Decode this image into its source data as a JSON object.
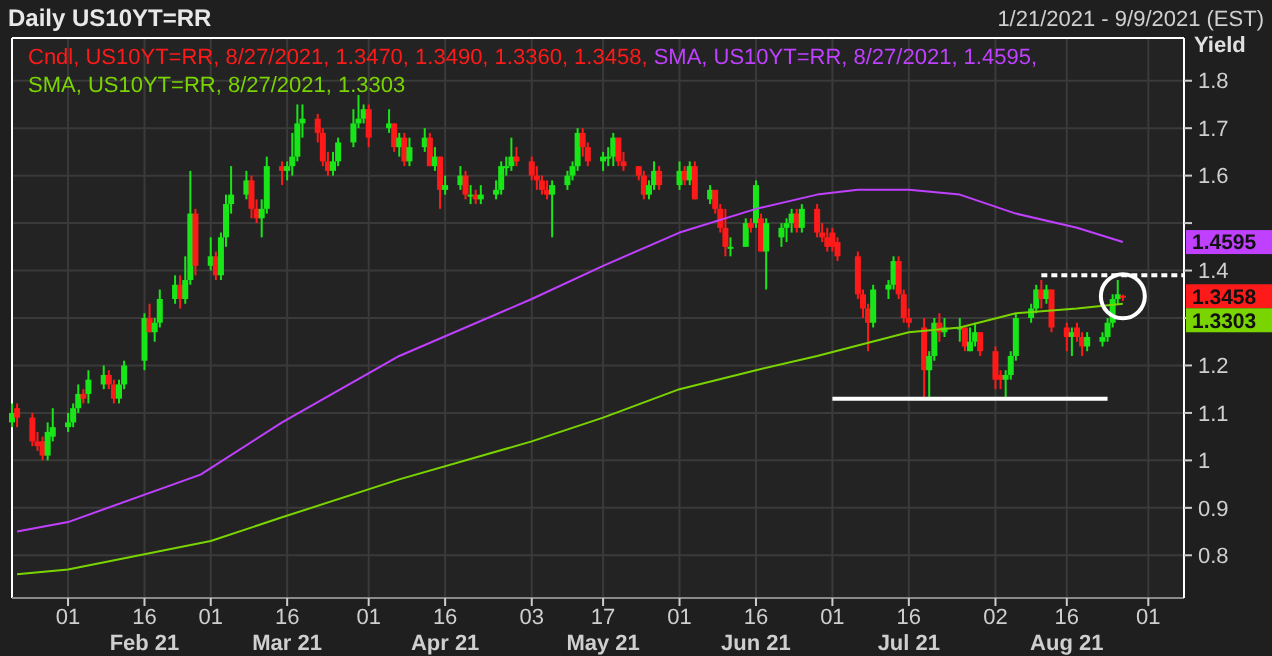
{
  "chart_data": {
    "type": "candlestick",
    "title": "Daily US10YT=RR",
    "subtitle": "1/21/2021 - 9/9/2021 (EST)",
    "ylabel": "Yield",
    "xlim": [
      "2021-01-21",
      "2021-09-08"
    ],
    "ylim": [
      0.71,
      1.89
    ],
    "xticks": [
      {
        "value": "2021-02-01",
        "label": "01"
      },
      {
        "value": "2021-02-16",
        "label": "16\nFeb 21"
      },
      {
        "value": "2021-03-01",
        "label": "01"
      },
      {
        "value": "2021-03-16",
        "label": "16\nMar 21"
      },
      {
        "value": "2021-04-01",
        "label": "01"
      },
      {
        "value": "2021-04-16",
        "label": "16\nApr 21"
      },
      {
        "value": "2021-05-03",
        "label": "03"
      },
      {
        "value": "2021-05-17",
        "label": "17\nMay 21"
      },
      {
        "value": "2021-06-01",
        "label": "01"
      },
      {
        "value": "2021-06-16",
        "label": "16\nJun 21"
      },
      {
        "value": "2021-07-01",
        "label": "01"
      },
      {
        "value": "2021-07-16",
        "label": "16\nJul 21"
      },
      {
        "value": "2021-08-02",
        "label": "02"
      },
      {
        "value": "2021-08-16",
        "label": "16\nAug 21"
      },
      {
        "value": "2021-09-01",
        "label": "01"
      }
    ],
    "yticks": [
      0.8,
      0.9,
      1,
      1.1,
      1.2,
      {
        "value": 1.3,
        "label": null
      },
      1.4,
      {
        "value": 1.5,
        "label": null
      },
      1.6,
      1.7,
      1.8
    ],
    "grid": true,
    "legend": "top left",
    "marker": "none",
    "x": [
      "2021-01-21",
      "2021-01-22",
      "2021-01-25",
      "2021-01-26",
      "2021-01-27",
      "2021-01-28",
      "2021-01-29",
      "2021-02-01",
      "2021-02-02",
      "2021-02-03",
      "2021-02-04",
      "2021-02-05",
      "2021-02-08",
      "2021-02-09",
      "2021-02-10",
      "2021-02-11",
      "2021-02-12",
      "2021-02-16",
      "2021-02-17",
      "2021-02-18",
      "2021-02-19",
      "2021-02-22",
      "2021-02-23",
      "2021-02-24",
      "2021-02-25",
      "2021-02-26",
      "2021-03-01",
      "2021-03-02",
      "2021-03-03",
      "2021-03-04",
      "2021-03-05",
      "2021-03-08",
      "2021-03-09",
      "2021-03-10",
      "2021-03-11",
      "2021-03-12",
      "2021-03-15",
      "2021-03-16",
      "2021-03-17",
      "2021-03-18",
      "2021-03-19",
      "2021-03-22",
      "2021-03-23",
      "2021-03-24",
      "2021-03-25",
      "2021-03-26",
      "2021-03-29",
      "2021-03-30",
      "2021-03-31",
      "2021-04-01",
      "2021-04-05",
      "2021-04-06",
      "2021-04-07",
      "2021-04-08",
      "2021-04-09",
      "2021-04-12",
      "2021-04-13",
      "2021-04-14",
      "2021-04-15",
      "2021-04-16",
      "2021-04-19",
      "2021-04-20",
      "2021-04-21",
      "2021-04-22",
      "2021-04-23",
      "2021-04-26",
      "2021-04-27",
      "2021-04-28",
      "2021-04-29",
      "2021-04-30",
      "2021-05-03",
      "2021-05-04",
      "2021-05-05",
      "2021-05-06",
      "2021-05-07",
      "2021-05-10",
      "2021-05-11",
      "2021-05-12",
      "2021-05-13",
      "2021-05-14",
      "2021-05-17",
      "2021-05-18",
      "2021-05-19",
      "2021-05-20",
      "2021-05-21",
      "2021-05-24",
      "2021-05-25",
      "2021-05-26",
      "2021-05-27",
      "2021-05-28",
      "2021-06-01",
      "2021-06-02",
      "2021-06-03",
      "2021-06-04",
      "2021-06-07",
      "2021-06-08",
      "2021-06-09",
      "2021-06-10",
      "2021-06-11",
      "2021-06-14",
      "2021-06-15",
      "2021-06-16",
      "2021-06-17",
      "2021-06-18",
      "2021-06-21",
      "2021-06-22",
      "2021-06-23",
      "2021-06-24",
      "2021-06-25",
      "2021-06-28",
      "2021-06-29",
      "2021-06-30",
      "2021-07-01",
      "2021-07-02",
      "2021-07-06",
      "2021-07-07",
      "2021-07-08",
      "2021-07-09",
      "2021-07-12",
      "2021-07-13",
      "2021-07-14",
      "2021-07-15",
      "2021-07-16",
      "2021-07-19",
      "2021-07-20",
      "2021-07-21",
      "2021-07-22",
      "2021-07-23",
      "2021-07-26",
      "2021-07-27",
      "2021-07-28",
      "2021-07-29",
      "2021-07-30",
      "2021-08-02",
      "2021-08-03",
      "2021-08-04",
      "2021-08-05",
      "2021-08-06",
      "2021-08-09",
      "2021-08-10",
      "2021-08-11",
      "2021-08-12",
      "2021-08-13",
      "2021-08-16",
      "2021-08-17",
      "2021-08-18",
      "2021-08-19",
      "2021-08-20",
      "2021-08-23",
      "2021-08-24",
      "2021-08-25",
      "2021-08-26",
      "2021-08-27"
    ],
    "series": [
      {
        "name": "Cndl, US10YT=RR, 8/27/2021, 1.3470, 1.3490, 1.3360, 1.3458,",
        "color": "#ff1a1a",
        "colors": [
          "#19e619",
          "#ff1a1a",
          "#ff1a1a",
          "#ff1a1a",
          "#ff1a1a",
          "#19e619",
          "#19e619",
          "#19e619",
          "#19e619",
          "#19e619",
          "#ff1a1a",
          "#19e619",
          "#19e619",
          "#ff1a1a",
          "#ff1a1a",
          "#19e619",
          "#19e619",
          "#19e619",
          "#ff1a1a",
          "#19e619",
          "#19e619",
          "#19e619",
          "#ff1a1a",
          "#19e619",
          "#19e619",
          "#ff1a1a",
          "#19e619",
          "#ff1a1a",
          "#19e619",
          "#19e619",
          "#19e619",
          "#19e619",
          "#ff1a1a",
          "#ff1a1a",
          "#19e619",
          "#19e619",
          "#ff1a1a",
          "#19e619",
          "#19e619",
          "#19e619",
          "#19e619",
          "#ff1a1a",
          "#ff1a1a",
          "#ff1a1a",
          "#19e619",
          "#19e619",
          "#19e619",
          "#19e619",
          "#19e619",
          "#ff1a1a",
          "#19e619",
          "#ff1a1a",
          "#19e619",
          "#ff1a1a",
          "#19e619",
          "#19e619",
          "#ff1a1a",
          "#19e619",
          "#ff1a1a",
          "#19e619",
          "#19e619",
          "#ff1a1a",
          "#19e619",
          "#ff1a1a",
          "#19e619",
          "#19e619",
          "#19e619",
          "#19e619",
          "#19e619",
          "#ff1a1a",
          "#ff1a1a",
          "#ff1a1a",
          "#ff1a1a",
          "#ff1a1a",
          "#19e619",
          "#19e619",
          "#19e619",
          "#19e619",
          "#ff1a1a",
          "#ff1a1a",
          "#19e619",
          "#19e619",
          "#19e619",
          "#ff1a1a",
          "#ff1a1a",
          "#ff1a1a",
          "#ff1a1a",
          "#19e619",
          "#19e619",
          "#ff1a1a",
          "#19e619",
          "#ff1a1a",
          "#19e619",
          "#ff1a1a",
          "#19e619",
          "#ff1a1a",
          "#ff1a1a",
          "#ff1a1a",
          "#19e619",
          "#19e619",
          "#ff1a1a",
          "#19e619",
          "#ff1a1a",
          "#19e619",
          "#19e619",
          "#19e619",
          "#19e619",
          "#ff1a1a",
          "#19e619",
          "#ff1a1a",
          "#ff1a1a",
          "#ff1a1a",
          "#ff1a1a",
          "#ff1a1a",
          "#ff1a1a",
          "#ff1a1a",
          "#ff1a1a",
          "#19e619",
          "#19e619",
          "#19e619",
          "#ff1a1a",
          "#ff1a1a",
          "#ff1a1a",
          "#ff1a1a",
          "#19e619",
          "#19e619",
          "#ff1a1a",
          "#19e619",
          "#19e619",
          "#ff1a1a",
          "#19e619",
          "#19e619",
          "#ff1a1a",
          "#ff1a1a",
          "#ff1a1a",
          "#19e619",
          "#19e619",
          "#19e619",
          "#19e619",
          "#19e619",
          "#ff1a1a",
          "#19e619",
          "#ff1a1a",
          "#ff1a1a",
          "#19e619",
          "#ff1a1a",
          "#ff1a1a",
          "#19e619",
          "#19e619",
          "#19e619",
          "#19e619",
          "#19e619",
          "#ff1a1a"
        ],
        "ohlc": [
          [
            1.08,
            1.12,
            1.07,
            1.1
          ],
          [
            1.11,
            1.12,
            1.07,
            1.09
          ],
          [
            1.09,
            1.1,
            1.03,
            1.04
          ],
          [
            1.04,
            1.06,
            1.02,
            1.03
          ],
          [
            1.04,
            1.05,
            1.0,
            1.01
          ],
          [
            1.01,
            1.08,
            1.0,
            1.06
          ],
          [
            1.05,
            1.11,
            1.04,
            1.07
          ],
          [
            1.07,
            1.1,
            1.06,
            1.08
          ],
          [
            1.08,
            1.12,
            1.07,
            1.11
          ],
          [
            1.11,
            1.16,
            1.1,
            1.14
          ],
          [
            1.14,
            1.15,
            1.12,
            1.13
          ],
          [
            1.14,
            1.19,
            1.12,
            1.17
          ],
          [
            1.16,
            1.2,
            1.15,
            1.18
          ],
          [
            1.18,
            1.19,
            1.15,
            1.16
          ],
          [
            1.16,
            1.17,
            1.12,
            1.13
          ],
          [
            1.13,
            1.17,
            1.12,
            1.16
          ],
          [
            1.16,
            1.21,
            1.15,
            1.2
          ],
          [
            1.21,
            1.31,
            1.19,
            1.3
          ],
          [
            1.3,
            1.33,
            1.27,
            1.27
          ],
          [
            1.27,
            1.3,
            1.25,
            1.29
          ],
          [
            1.29,
            1.36,
            1.28,
            1.34
          ],
          [
            1.34,
            1.39,
            1.33,
            1.37
          ],
          [
            1.37,
            1.39,
            1.32,
            1.34
          ],
          [
            1.34,
            1.43,
            1.33,
            1.38
          ],
          [
            1.38,
            1.61,
            1.37,
            1.52
          ],
          [
            1.52,
            1.53,
            1.39,
            1.41
          ],
          [
            1.41,
            1.47,
            1.4,
            1.43
          ],
          [
            1.43,
            1.44,
            1.38,
            1.39
          ],
          [
            1.39,
            1.48,
            1.38,
            1.47
          ],
          [
            1.47,
            1.56,
            1.45,
            1.54
          ],
          [
            1.54,
            1.62,
            1.52,
            1.56
          ],
          [
            1.56,
            1.61,
            1.55,
            1.59
          ],
          [
            1.59,
            1.6,
            1.51,
            1.53
          ],
          [
            1.53,
            1.55,
            1.5,
            1.51
          ],
          [
            1.51,
            1.55,
            1.47,
            1.53
          ],
          [
            1.53,
            1.64,
            1.52,
            1.62
          ],
          [
            1.62,
            1.63,
            1.58,
            1.61
          ],
          [
            1.61,
            1.63,
            1.59,
            1.62
          ],
          [
            1.62,
            1.69,
            1.6,
            1.64
          ],
          [
            1.64,
            1.75,
            1.63,
            1.71
          ],
          [
            1.71,
            1.75,
            1.68,
            1.72
          ],
          [
            1.72,
            1.73,
            1.67,
            1.69
          ],
          [
            1.69,
            1.7,
            1.62,
            1.63
          ],
          [
            1.63,
            1.65,
            1.6,
            1.61
          ],
          [
            1.61,
            1.65,
            1.6,
            1.63
          ],
          [
            1.63,
            1.68,
            1.62,
            1.67
          ],
          [
            1.67,
            1.74,
            1.66,
            1.71
          ],
          [
            1.71,
            1.77,
            1.7,
            1.72
          ],
          [
            1.72,
            1.75,
            1.71,
            1.74
          ],
          [
            1.74,
            1.75,
            1.66,
            1.68
          ],
          [
            1.7,
            1.74,
            1.69,
            1.71
          ],
          [
            1.71,
            1.71,
            1.65,
            1.66
          ],
          [
            1.66,
            1.69,
            1.64,
            1.68
          ],
          [
            1.68,
            1.69,
            1.62,
            1.63
          ],
          [
            1.63,
            1.68,
            1.62,
            1.66
          ],
          [
            1.66,
            1.7,
            1.65,
            1.68
          ],
          [
            1.68,
            1.69,
            1.62,
            1.62
          ],
          [
            1.62,
            1.66,
            1.61,
            1.64
          ],
          [
            1.64,
            1.64,
            1.53,
            1.57
          ],
          [
            1.57,
            1.6,
            1.56,
            1.58
          ],
          [
            1.58,
            1.62,
            1.57,
            1.6
          ],
          [
            1.6,
            1.61,
            1.55,
            1.56
          ],
          [
            1.56,
            1.58,
            1.54,
            1.56
          ],
          [
            1.56,
            1.57,
            1.54,
            1.55
          ],
          [
            1.55,
            1.58,
            1.54,
            1.56
          ],
          [
            1.56,
            1.59,
            1.55,
            1.57
          ],
          [
            1.57,
            1.63,
            1.56,
            1.62
          ],
          [
            1.62,
            1.64,
            1.6,
            1.62
          ],
          [
            1.62,
            1.68,
            1.61,
            1.64
          ],
          [
            1.64,
            1.66,
            1.62,
            1.63
          ],
          [
            1.63,
            1.64,
            1.59,
            1.6
          ],
          [
            1.6,
            1.62,
            1.57,
            1.59
          ],
          [
            1.59,
            1.6,
            1.56,
            1.57
          ],
          [
            1.57,
            1.59,
            1.55,
            1.56
          ],
          [
            1.56,
            1.59,
            1.47,
            1.58
          ],
          [
            1.58,
            1.61,
            1.57,
            1.6
          ],
          [
            1.6,
            1.63,
            1.59,
            1.62
          ],
          [
            1.62,
            1.7,
            1.61,
            1.69
          ],
          [
            1.69,
            1.7,
            1.64,
            1.66
          ],
          [
            1.66,
            1.67,
            1.62,
            1.63
          ],
          [
            1.63,
            1.65,
            1.61,
            1.64
          ],
          [
            1.64,
            1.66,
            1.62,
            1.64
          ],
          [
            1.64,
            1.69,
            1.62,
            1.68
          ],
          [
            1.68,
            1.68,
            1.62,
            1.63
          ],
          [
            1.63,
            1.65,
            1.61,
            1.62
          ],
          [
            1.62,
            1.62,
            1.59,
            1.6
          ],
          [
            1.6,
            1.61,
            1.55,
            1.56
          ],
          [
            1.56,
            1.59,
            1.55,
            1.58
          ],
          [
            1.58,
            1.63,
            1.57,
            1.61
          ],
          [
            1.61,
            1.62,
            1.57,
            1.58
          ],
          [
            1.58,
            1.63,
            1.57,
            1.61
          ],
          [
            1.61,
            1.62,
            1.58,
            1.59
          ],
          [
            1.59,
            1.63,
            1.58,
            1.62
          ],
          [
            1.62,
            1.63,
            1.55,
            1.55
          ],
          [
            1.55,
            1.58,
            1.54,
            1.57
          ],
          [
            1.57,
            1.57,
            1.52,
            1.53
          ],
          [
            1.53,
            1.54,
            1.48,
            1.49
          ],
          [
            1.49,
            1.53,
            1.43,
            1.45
          ],
          [
            1.45,
            1.47,
            1.43,
            1.45
          ],
          [
            1.45,
            1.51,
            1.45,
            1.5
          ],
          [
            1.5,
            1.51,
            1.48,
            1.49
          ],
          [
            1.5,
            1.59,
            1.49,
            1.58
          ],
          [
            1.51,
            1.52,
            1.44,
            1.44
          ],
          [
            1.44,
            1.51,
            1.36,
            1.5
          ],
          [
            1.47,
            1.5,
            1.45,
            1.49
          ],
          [
            1.49,
            1.51,
            1.46,
            1.5
          ],
          [
            1.5,
            1.53,
            1.48,
            1.52
          ],
          [
            1.52,
            1.53,
            1.48,
            1.49
          ],
          [
            1.49,
            1.54,
            1.48,
            1.53
          ],
          [
            1.53,
            1.54,
            1.47,
            1.48
          ],
          [
            1.48,
            1.5,
            1.46,
            1.47
          ],
          [
            1.47,
            1.49,
            1.44,
            1.45
          ],
          [
            1.48,
            1.49,
            1.44,
            1.45
          ],
          [
            1.46,
            1.47,
            1.42,
            1.43
          ],
          [
            1.43,
            1.44,
            1.34,
            1.35
          ],
          [
            1.35,
            1.36,
            1.3,
            1.32
          ],
          [
            1.32,
            1.33,
            1.23,
            1.29
          ],
          [
            1.29,
            1.37,
            1.28,
            1.36
          ],
          [
            1.36,
            1.38,
            1.34,
            1.37
          ],
          [
            1.37,
            1.43,
            1.36,
            1.42
          ],
          [
            1.42,
            1.43,
            1.34,
            1.35
          ],
          [
            1.35,
            1.36,
            1.29,
            1.3
          ],
          [
            1.3,
            1.32,
            1.28,
            1.29
          ],
          [
            1.28,
            1.3,
            1.13,
            1.19
          ],
          [
            1.19,
            1.23,
            1.13,
            1.22
          ],
          [
            1.22,
            1.3,
            1.21,
            1.29
          ],
          [
            1.29,
            1.31,
            1.25,
            1.27
          ],
          [
            1.27,
            1.3,
            1.26,
            1.28
          ],
          [
            1.28,
            1.3,
            1.25,
            1.28
          ],
          [
            1.28,
            1.28,
            1.23,
            1.24
          ],
          [
            1.23,
            1.28,
            1.23,
            1.25
          ],
          [
            1.25,
            1.29,
            1.24,
            1.27
          ],
          [
            1.27,
            1.27,
            1.22,
            1.23
          ],
          [
            1.23,
            1.24,
            1.15,
            1.17
          ],
          [
            1.18,
            1.19,
            1.15,
            1.17
          ],
          [
            1.17,
            1.19,
            1.13,
            1.18
          ],
          [
            1.18,
            1.23,
            1.17,
            1.22
          ],
          [
            1.22,
            1.31,
            1.21,
            1.3
          ],
          [
            1.3,
            1.33,
            1.29,
            1.32
          ],
          [
            1.32,
            1.37,
            1.31,
            1.36
          ],
          [
            1.36,
            1.38,
            1.32,
            1.34
          ],
          [
            1.34,
            1.37,
            1.33,
            1.36
          ],
          [
            1.36,
            1.36,
            1.27,
            1.28
          ],
          [
            1.28,
            1.29,
            1.23,
            1.26
          ],
          [
            1.26,
            1.28,
            1.22,
            1.27
          ],
          [
            1.28,
            1.29,
            1.25,
            1.26
          ],
          [
            1.26,
            1.27,
            1.22,
            1.24
          ],
          [
            1.24,
            1.27,
            1.23,
            1.26
          ],
          [
            1.25,
            1.27,
            1.24,
            1.26
          ],
          [
            1.26,
            1.3,
            1.25,
            1.29
          ],
          [
            1.29,
            1.35,
            1.28,
            1.34
          ],
          [
            1.34,
            1.38,
            1.33,
            1.35
          ],
          [
            1.347,
            1.349,
            1.336,
            1.3458
          ]
        ]
      },
      {
        "type": "line",
        "name": "SMA, US10YT=RR, 8/27/2021, 1.4595,",
        "color": "#c040ff",
        "x": [
          "2021-01-22",
          "2021-02-01",
          "2021-02-27",
          "2021-03-15",
          "2021-04-07",
          "2021-05-03",
          "2021-05-17",
          "2021-06-01",
          "2021-06-16",
          "2021-06-28",
          "2021-07-06",
          "2021-07-16",
          "2021-07-26",
          "2021-08-06",
          "2021-08-18",
          "2021-08-27"
        ],
        "values": [
          0.85,
          0.87,
          0.97,
          1.08,
          1.22,
          1.34,
          1.41,
          1.48,
          1.53,
          1.56,
          1.57,
          1.57,
          1.56,
          1.52,
          1.49,
          1.46
        ]
      },
      {
        "type": "line",
        "name": "SMA, US10YT=RR, 8/27/2021, 1.3303",
        "color": "#7ad400",
        "x": [
          "2021-01-22",
          "2021-02-01",
          "2021-03-01",
          "2021-03-15",
          "2021-04-07",
          "2021-05-03",
          "2021-05-17",
          "2021-06-01",
          "2021-06-16",
          "2021-06-28",
          "2021-07-16",
          "2021-07-26",
          "2021-08-06",
          "2021-08-18",
          "2021-08-27"
        ],
        "values": [
          0.76,
          0.77,
          0.83,
          0.88,
          0.96,
          1.04,
          1.09,
          1.15,
          1.19,
          1.22,
          1.27,
          1.28,
          1.31,
          1.32,
          1.33
        ]
      },
      {
        "type": "line",
        "color": "#ffffff",
        "x": [
          "2021-07-01",
          "2021-08-24"
        ],
        "values": [
          1.13,
          1.13
        ]
      },
      {
        "type": "line",
        "color": "#ffffff",
        "line_style": "dashed",
        "x": [
          "2021-08-11",
          "2021-09-08"
        ],
        "values": [
          1.39,
          1.39
        ]
      }
    ],
    "annotations": [
      "1.3458",
      "1.4595",
      "1.3303"
    ]
  }
}
